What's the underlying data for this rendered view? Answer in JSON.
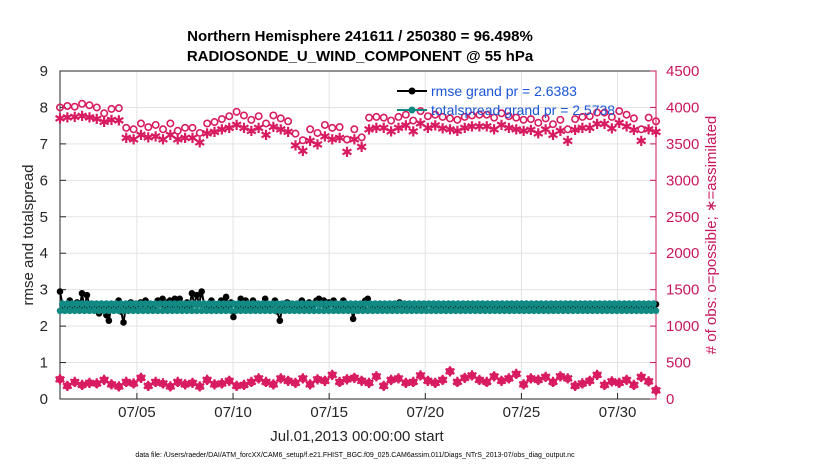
{
  "chart_data": {
    "type": "line",
    "title_line1": "Northern Hemisphere 241611 / 250380 = 96.498%",
    "title_line2": "RADIOSONDE_U_WIND_COMPONENT @ 55 hPa",
    "xlabel": "Jul.01,2013 00:00:00 start",
    "ylabel_left": "rmse and totalspread",
    "ylabel_right": "# of obs: o=possible; ∗=assimilated",
    "footnote": "data file: /Users/raeder/DAI/ATM_forcXX/CAM6_setup/f.e21.FHIST_BGC.f09_025.CAM6assim.011/Diags_NTrS_2013-07/obs_diag_output.nc",
    "x_range": [
      1.0,
      32.0
    ],
    "ylim_left": [
      0,
      9
    ],
    "ylim_right": [
      0,
      4500
    ],
    "left_ticks": [
      "0",
      "1",
      "2",
      "3",
      "4",
      "5",
      "6",
      "7",
      "8",
      "9"
    ],
    "right_ticks": [
      "0",
      "500",
      "1000",
      "1500",
      "2000",
      "2500",
      "3000",
      "3500",
      "4000",
      "4500"
    ],
    "x_ticks": [
      {
        "value": 5,
        "label": "07/05"
      },
      {
        "value": 10,
        "label": "07/10"
      },
      {
        "value": 15,
        "label": "07/15"
      },
      {
        "value": 20,
        "label": "07/20"
      },
      {
        "value": 25,
        "label": "07/25"
      },
      {
        "value": 30,
        "label": "07/30"
      }
    ],
    "legend": [
      {
        "name": "rmse grand pr = 2.6383",
        "color": "#000000"
      },
      {
        "name": "totalspread grand pr = 2.5738",
        "color": "#128a84"
      }
    ],
    "colors": {
      "rmse": "#000000",
      "spread": "#128a84",
      "obs": "#d81b60",
      "right_axis": "#c8175e"
    },
    "series": {
      "rmse": [
        2.95,
        2.6,
        2.5,
        2.55,
        2.7,
        2.5,
        2.55,
        2.65,
        2.45,
        2.9,
        2.5,
        2.85,
        2.6,
        2.55,
        2.6,
        2.5,
        2.35,
        2.55,
        2.5,
        2.3,
        2.15,
        2.55,
        2.6,
        2.5,
        2.7,
        2.4,
        2.1,
        2.55,
        2.5,
        2.65,
        2.45,
        2.55,
        2.45,
        2.65,
        2.6,
        2.7,
        2.45,
        2.55,
        2.6,
        2.45,
        2.7,
        2.6,
        2.75,
        2.55,
        2.65,
        2.7,
        2.55,
        2.75,
        2.6,
        2.75,
        2.5,
        2.55,
        2.65,
        2.55,
        2.9,
        2.6,
        2.85,
        2.6,
        2.95,
        2.6,
        2.55,
        2.45,
        2.7,
        2.5,
        2.6,
        2.55,
        2.7,
        2.55,
        2.8,
        2.55,
        2.65,
        2.25,
        2.6,
        2.55,
        2.75,
        2.55,
        2.7,
        2.45,
        2.6,
        2.7,
        2.5,
        2.6,
        2.55,
        2.55,
        2.75,
        2.5,
        2.55,
        2.6,
        2.7,
        2.4,
        2.15,
        2.5,
        2.55,
        2.65,
        2.6,
        2.5,
        2.55,
        2.6,
        2.5,
        2.7,
        2.6,
        2.5,
        2.65,
        2.55,
        2.6,
        2.7,
        2.75,
        2.6,
        2.7,
        2.55,
        2.65,
        2.6,
        2.7,
        2.5,
        2.6,
        2.55,
        2.7,
        2.45,
        2.55,
        2.6,
        2.2,
        2.5,
        2.55,
        2.6,
        2.5,
        2.7,
        2.75,
        2.6,
        2.55,
        2.45,
        2.55,
        2.6,
        2.5,
        2.6,
        2.55,
        2.5,
        2.6,
        2.55,
        2.6,
        2.65,
        2.55,
        2.5,
        2.6,
        2.55,
        2.5,
        2.6,
        2.55,
        2.5,
        2.6,
        2.55,
        2.6,
        2.6,
        2.6,
        2.5,
        2.6,
        2.55,
        2.5,
        2.6,
        2.55,
        2.5,
        2.6,
        2.55,
        2.5,
        2.6,
        2.55,
        2.5,
        2.6,
        2.55,
        2.5,
        2.6,
        2.55,
        2.5,
        2.6,
        2.55,
        2.5,
        2.6,
        2.55,
        2.5,
        2.6,
        2.55,
        2.5,
        2.6,
        2.55,
        2.5,
        2.6,
        2.55,
        2.5,
        2.6,
        2.55,
        2.5,
        2.6,
        2.55,
        2.5,
        2.6,
        2.55,
        2.5,
        2.6,
        2.55,
        2.5,
        2.6,
        2.55,
        2.5,
        2.6,
        2.55,
        2.5,
        2.6,
        2.55,
        2.5,
        2.6,
        2.55,
        2.5,
        2.6,
        2.55,
        2.5,
        2.6,
        2.55,
        2.5,
        2.6,
        2.55,
        2.5,
        2.6,
        2.55,
        2.5,
        2.6,
        2.55,
        2.5,
        2.6,
        2.55,
        2.5,
        2.6,
        2.55,
        2.5,
        2.6,
        2.55,
        2.5,
        2.6,
        2.55,
        2.5,
        2.6,
        2.55,
        2.5,
        2.6,
        2.55,
        2.5,
        2.6
      ],
      "possible": [
        4000,
        4020,
        4010,
        4050,
        4030,
        4000,
        3920,
        3980,
        3990,
        3720,
        3700,
        3780,
        3730,
        3760,
        3700,
        3780,
        3680,
        3720,
        3720,
        3650,
        3780,
        3800,
        3840,
        3880,
        3940,
        3890,
        3830,
        3880,
        3780,
        3890,
        3850,
        3810,
        3640,
        3550,
        3700,
        3650,
        3760,
        3720,
        3730,
        3560,
        3700,
        3590,
        3860,
        3870,
        3860,
        3820,
        3870,
        3900,
        3820,
        3950,
        3880,
        3900,
        3870,
        3850,
        3830,
        3870,
        3890,
        3900,
        3900,
        3860,
        3920,
        3880,
        3860,
        3830,
        3840,
        3790,
        3850,
        3770,
        3830,
        3700,
        3840,
        3870,
        3880,
        3930,
        3930,
        3870,
        3950,
        3900,
        3850,
        3700,
        3860,
        3810
      ],
      "assimilated": [
        3850,
        3860,
        3870,
        3880,
        3860,
        3840,
        3800,
        3830,
        3820,
        3580,
        3560,
        3620,
        3590,
        3600,
        3560,
        3620,
        3560,
        3580,
        3580,
        3520,
        3640,
        3660,
        3700,
        3720,
        3760,
        3720,
        3680,
        3720,
        3620,
        3730,
        3700,
        3660,
        3480,
        3400,
        3540,
        3490,
        3600,
        3560,
        3580,
        3390,
        3560,
        3460,
        3700,
        3720,
        3720,
        3670,
        3720,
        3750,
        3670,
        3780,
        3720,
        3750,
        3710,
        3700,
        3680,
        3720,
        3740,
        3740,
        3740,
        3700,
        3760,
        3720,
        3700,
        3680,
        3690,
        3640,
        3700,
        3620,
        3680,
        3540,
        3690,
        3720,
        3720,
        3770,
        3770,
        3710,
        3790,
        3740,
        3690,
        3540,
        3700,
        3660
      ],
      "not_assimilated": [
        270,
        180,
        230,
        190,
        220,
        210,
        260,
        200,
        170,
        230,
        210,
        290,
        180,
        230,
        210,
        170,
        230,
        200,
        220,
        170,
        260,
        200,
        210,
        250,
        180,
        190,
        230,
        280,
        230,
        200,
        280,
        250,
        220,
        280,
        200,
        270,
        250,
        330,
        230,
        270,
        290,
        250,
        220,
        310,
        180,
        260,
        280,
        220,
        230,
        320,
        250,
        220,
        260,
        380,
        230,
        290,
        320,
        260,
        230,
        310,
        250,
        280,
        340,
        200,
        280,
        260,
        300,
        230,
        310,
        280,
        180,
        210,
        250,
        330,
        190,
        240,
        220,
        260,
        190,
        300,
        240,
        120
      ]
    }
  }
}
